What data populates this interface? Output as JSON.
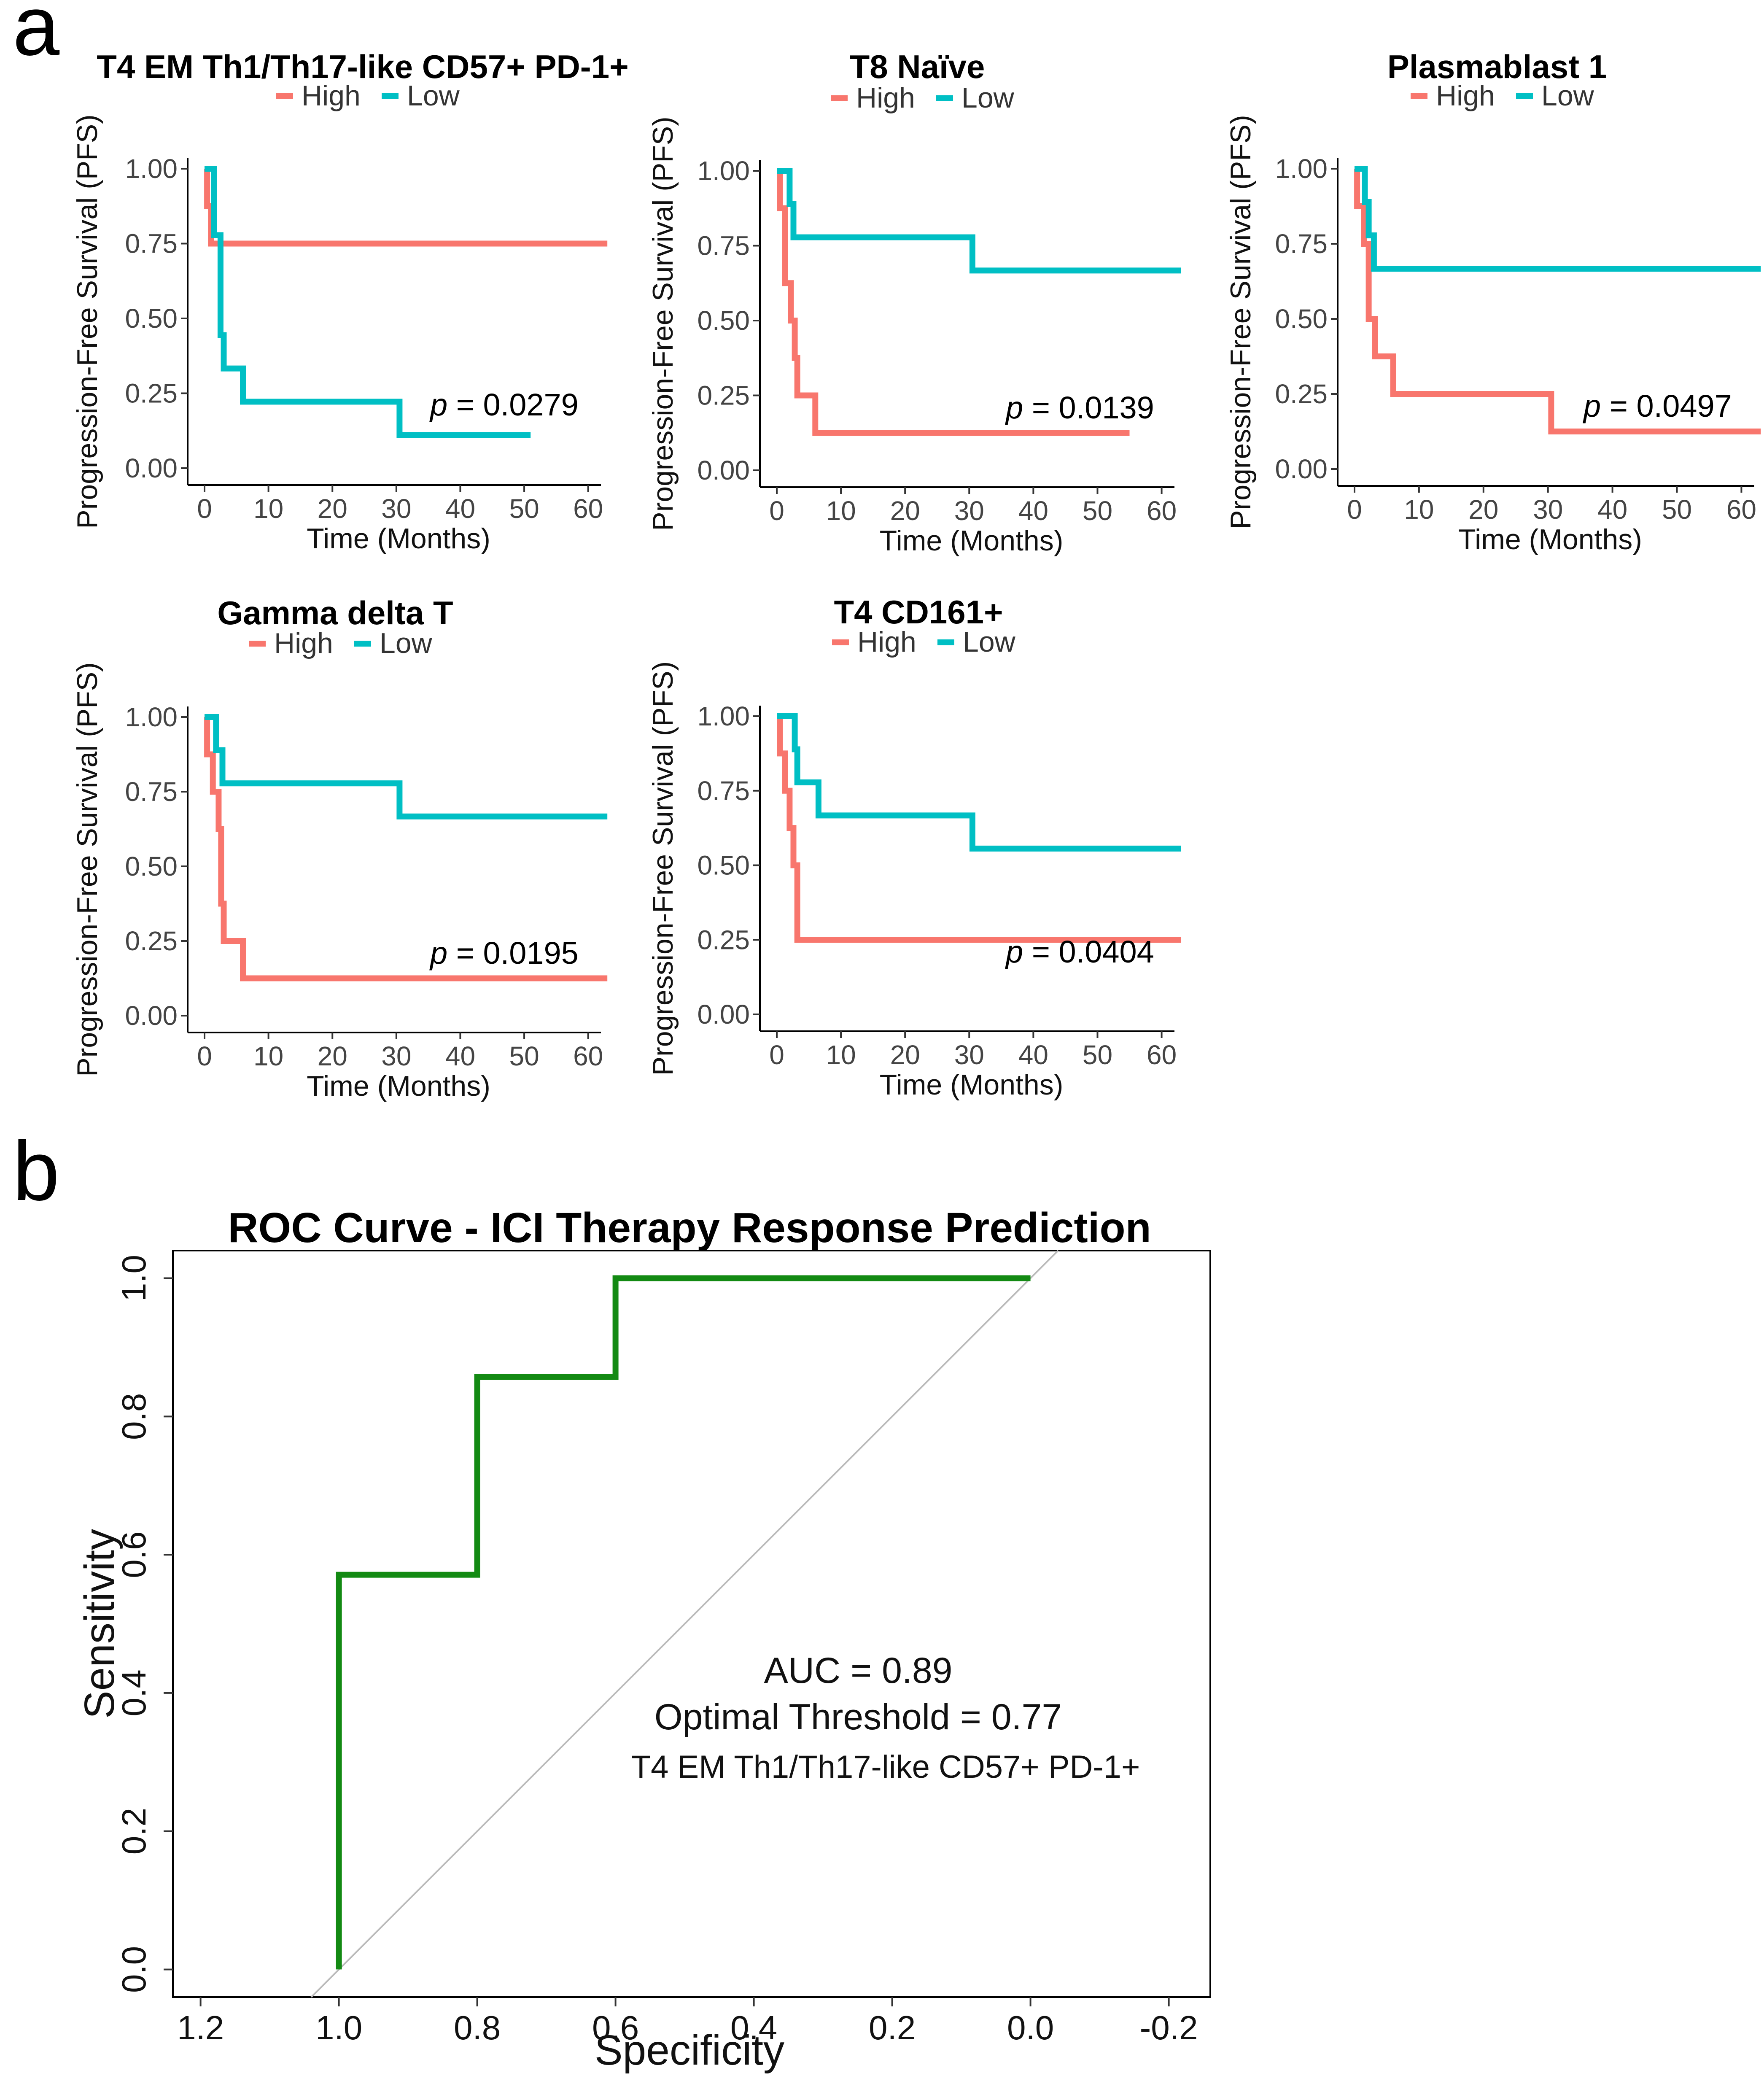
{
  "panel_labels": {
    "a": "a",
    "b": "b"
  },
  "colors": {
    "high": "#F8766D",
    "low": "#00BFC4",
    "roc": "#138A13",
    "diagonal": "#BBBBBB"
  },
  "chart_data": [
    {
      "type": "line",
      "subtype": "kaplan-meier",
      "title": "T4 EM Th1/Th17-like CD57+ PD-1+",
      "legend": [
        "High",
        "Low"
      ],
      "xlabel": "Time (Months)",
      "ylabel": "Progression-Free Survival (PFS)",
      "xlim": [
        0,
        62
      ],
      "ylim": [
        0,
        1
      ],
      "xticks": [
        0,
        10,
        20,
        30,
        40,
        50,
        60
      ],
      "yticks": [
        "0.00",
        "0.25",
        "0.50",
        "0.75",
        "1.00"
      ],
      "p_value": "0.0279",
      "series": [
        {
          "name": "High",
          "color": "#F8766D",
          "x": [
            0,
            0.4,
            0.4,
            1.0,
            1.0,
            1.8,
            1.8,
            63
          ],
          "y": [
            1,
            1,
            0.875,
            0.875,
            0.75,
            0.75,
            0.75,
            0.75
          ]
        },
        {
          "name": "Low",
          "color": "#00BFC4",
          "x": [
            0,
            1.5,
            1.5,
            2.5,
            2.5,
            3.0,
            3.0,
            6.0,
            6.0,
            30.5,
            30.5,
            51
          ],
          "y": [
            1,
            1,
            0.778,
            0.778,
            0.444,
            0.444,
            0.333,
            0.333,
            0.222,
            0.222,
            0.111,
            0.111
          ]
        }
      ]
    },
    {
      "type": "line",
      "subtype": "kaplan-meier",
      "title": "T8 Naïve",
      "legend": [
        "High",
        "Low"
      ],
      "xlabel": "Time (Months)",
      "ylabel": "Progression-Free Survival (PFS)",
      "xlim": [
        0,
        62
      ],
      "ylim": [
        0,
        1
      ],
      "xticks": [
        0,
        10,
        20,
        30,
        40,
        50,
        60
      ],
      "yticks": [
        "0.00",
        "0.25",
        "0.50",
        "0.75",
        "1.00"
      ],
      "p_value": "0.0139",
      "series": [
        {
          "name": "High",
          "color": "#F8766D",
          "x": [
            0,
            0.5,
            0.5,
            1.3,
            1.3,
            2.2,
            2.2,
            2.8,
            2.8,
            3.2,
            3.2,
            6.0,
            6.0,
            55
          ],
          "y": [
            1,
            1,
            0.875,
            0.875,
            0.625,
            0.625,
            0.5,
            0.5,
            0.375,
            0.375,
            0.25,
            0.25,
            0.125,
            0.125
          ]
        },
        {
          "name": "Low",
          "color": "#00BFC4",
          "x": [
            0,
            2.0,
            2.0,
            2.6,
            2.6,
            30.5,
            30.5,
            63
          ],
          "y": [
            1,
            1,
            0.889,
            0.889,
            0.778,
            0.778,
            0.667,
            0.667
          ]
        }
      ]
    },
    {
      "type": "line",
      "subtype": "kaplan-meier",
      "title": "Plasmablast 1",
      "legend": [
        "High",
        "Low"
      ],
      "xlabel": "Time (Months)",
      "ylabel": "Progression-Free Survival (PFS)",
      "xlim": [
        0,
        62
      ],
      "ylim": [
        0,
        1
      ],
      "xticks": [
        0,
        10,
        20,
        30,
        40,
        50,
        60
      ],
      "yticks": [
        "0.00",
        "0.25",
        "0.50",
        "0.75",
        "1.00"
      ],
      "p_value": "0.0497",
      "series": [
        {
          "name": "High",
          "color": "#F8766D",
          "x": [
            0,
            0.4,
            0.4,
            1.5,
            1.5,
            2.2,
            2.2,
            3.2,
            3.2,
            6.0,
            6.0,
            30.5,
            30.5,
            63
          ],
          "y": [
            1,
            1,
            0.875,
            0.875,
            0.75,
            0.75,
            0.5,
            0.5,
            0.375,
            0.375,
            0.25,
            0.25,
            0.125,
            0.125
          ]
        },
        {
          "name": "Low",
          "color": "#00BFC4",
          "x": [
            0,
            1.6,
            1.6,
            2.2,
            2.2,
            3.0,
            3.0,
            63
          ],
          "y": [
            1,
            1,
            0.889,
            0.889,
            0.778,
            0.778,
            0.667,
            0.667
          ]
        }
      ]
    },
    {
      "type": "line",
      "subtype": "kaplan-meier",
      "title": "Gamma delta T",
      "legend": [
        "High",
        "Low"
      ],
      "xlabel": "Time (Months)",
      "ylabel": "Progression-Free Survival (PFS)",
      "xlim": [
        0,
        62
      ],
      "ylim": [
        0,
        1
      ],
      "xticks": [
        0,
        10,
        20,
        30,
        40,
        50,
        60
      ],
      "yticks": [
        "0.00",
        "0.25",
        "0.50",
        "0.75",
        "1.00"
      ],
      "p_value": "0.0195",
      "series": [
        {
          "name": "High",
          "color": "#F8766D",
          "x": [
            0,
            0.4,
            0.4,
            1.3,
            1.3,
            2.2,
            2.2,
            2.6,
            2.6,
            3.0,
            3.0,
            6.0,
            6.0,
            63
          ],
          "y": [
            1,
            1,
            0.875,
            0.875,
            0.75,
            0.75,
            0.625,
            0.625,
            0.375,
            0.375,
            0.25,
            0.25,
            0.125,
            0.125
          ]
        },
        {
          "name": "Low",
          "color": "#00BFC4",
          "x": [
            0,
            1.8,
            1.8,
            2.8,
            2.8,
            30.5,
            30.5,
            63
          ],
          "y": [
            1,
            1,
            0.889,
            0.889,
            0.778,
            0.778,
            0.667,
            0.667
          ]
        }
      ]
    },
    {
      "type": "line",
      "subtype": "kaplan-meier",
      "title": "T4 CD161+",
      "legend": [
        "High",
        "Low"
      ],
      "xlabel": "Time (Months)",
      "ylabel": "Progression-Free Survival (PFS)",
      "xlim": [
        0,
        62
      ],
      "ylim": [
        0,
        1
      ],
      "xticks": [
        0,
        10,
        20,
        30,
        40,
        50,
        60
      ],
      "yticks": [
        "0.00",
        "0.25",
        "0.50",
        "0.75",
        "1.00"
      ],
      "p_value": "0.0404",
      "series": [
        {
          "name": "High",
          "color": "#F8766D",
          "x": [
            0,
            0.5,
            0.5,
            1.3,
            1.3,
            2.0,
            2.0,
            2.6,
            2.6,
            3.2,
            3.2,
            63
          ],
          "y": [
            1,
            1,
            0.875,
            0.875,
            0.75,
            0.75,
            0.625,
            0.625,
            0.5,
            0.5,
            0.25,
            0.25
          ]
        },
        {
          "name": "Low",
          "color": "#00BFC4",
          "x": [
            0,
            2.8,
            2.8,
            3.2,
            3.2,
            6.5,
            6.5,
            30.5,
            30.5,
            63
          ],
          "y": [
            1,
            1,
            0.889,
            0.889,
            0.778,
            0.778,
            0.667,
            0.667,
            0.556,
            0.556
          ]
        }
      ]
    },
    {
      "type": "line",
      "subtype": "roc",
      "title": "ROC Curve - ICI Therapy Response Prediction",
      "xlabel": "Specificity",
      "ylabel": "Sensitivity",
      "xlim": [
        1.24,
        -0.26
      ],
      "ylim": [
        -0.04,
        1.04
      ],
      "xticks": [
        1.2,
        1.0,
        0.8,
        0.6,
        0.4,
        0.2,
        0.0,
        -0.2
      ],
      "xtick_labels": [
        "1.2",
        "1.0",
        "0.8",
        "0.6",
        "0.4",
        "0.2",
        "0.0",
        "-0.2"
      ],
      "yticks": [
        0.0,
        0.2,
        0.4,
        0.6,
        0.8,
        1.0
      ],
      "ytick_labels": [
        "0.0",
        "0.2",
        "0.4",
        "0.6",
        "0.8",
        "1.0"
      ],
      "series": [
        {
          "name": "ROC",
          "color": "#138A13",
          "specificity": [
            1.0,
            1.0,
            0.8,
            0.8,
            0.6,
            0.6,
            0.0
          ],
          "sensitivity": [
            0.0,
            0.571,
            0.571,
            0.857,
            0.857,
            1.0,
            1.0
          ]
        },
        {
          "name": "Reference",
          "color": "#BBBBBB",
          "specificity": [
            1.0,
            0.0
          ],
          "sensitivity": [
            0.0,
            1.0
          ]
        }
      ],
      "annotations": {
        "auc": "AUC = 0.89",
        "threshold": "Optimal Threshold = 0.77",
        "subset": "T4 EM Th1/Th17-like CD57+ PD-1+"
      }
    }
  ]
}
